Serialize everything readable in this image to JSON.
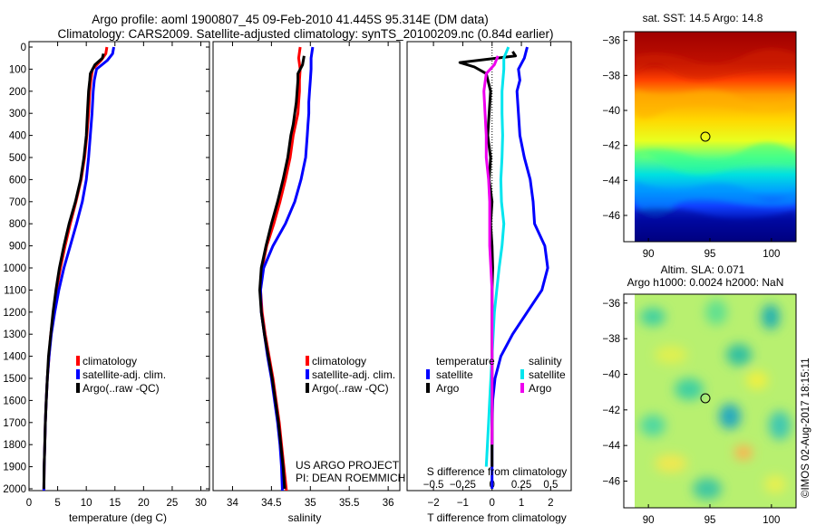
{
  "header": {
    "line1": "Argo profile: aoml 1900807_45 09-Feb-2010 41.445S 95.314E (DM data)",
    "line2": "Climatology: CARS2009. Satellite-adjusted climatology: synTS_20100209.nc (0.84d earlier)"
  },
  "colors": {
    "climatology": "#ff0000",
    "satellite": "#0000ff",
    "argo": "#000000",
    "sat_temp_diff": "#0000ff",
    "argo_temp_diff": "#000000",
    "sat_sal_diff": "#00e5ee",
    "argo_sal_diff": "#ee00ee"
  },
  "depth_axis": {
    "ticks": [
      0,
      100,
      200,
      300,
      400,
      500,
      600,
      700,
      800,
      900,
      1000,
      1100,
      1200,
      1300,
      1400,
      1500,
      1600,
      1700,
      1800,
      1900,
      2000
    ],
    "range": [
      0,
      2060
    ],
    "reversed": true
  },
  "chart_data": [
    {
      "id": "temperature",
      "type": "line",
      "xlabel": "temperature (deg C)",
      "xlim": [
        0,
        31.5
      ],
      "xticks": [
        0,
        5,
        10,
        15,
        20,
        25,
        30
      ],
      "legend": [
        "climatology",
        "satellite-adj. clim.",
        "Argo(..raw -QC)"
      ],
      "legend_position": "lower-center",
      "series": [
        {
          "name": "climatology",
          "colorKey": "climatology",
          "x": [
            13.6,
            13.4,
            12.6,
            11.1,
            10.8,
            10.6,
            10.4,
            10.1,
            9.7,
            9.1,
            8.2,
            7.2,
            6.3,
            5.5,
            4.8,
            4.3,
            3.8,
            3.5,
            3.2,
            3.0,
            2.85,
            2.75,
            2.65,
            2.6,
            2.55
          ],
          "y": [
            0,
            30,
            60,
            100,
            150,
            200,
            300,
            400,
            500,
            600,
            700,
            800,
            900,
            1000,
            1100,
            1200,
            1300,
            1400,
            1500,
            1600,
            1700,
            1800,
            1900,
            2000,
            2050
          ]
        },
        {
          "name": "satellite-adj. clim.",
          "colorKey": "satellite",
          "x": [
            14.8,
            14.6,
            13.7,
            11.8,
            11.4,
            11.2,
            11.0,
            10.7,
            10.4,
            10.0,
            9.3,
            8.3,
            7.2,
            6.1,
            5.2,
            4.5,
            3.9,
            3.5,
            3.2,
            3.0,
            2.85,
            2.75,
            2.65,
            2.6,
            2.55
          ],
          "y": [
            0,
            30,
            60,
            100,
            150,
            200,
            300,
            400,
            500,
            600,
            700,
            800,
            900,
            1000,
            1100,
            1200,
            1300,
            1400,
            1500,
            1600,
            1700,
            1800,
            1900,
            2000,
            2050
          ]
        },
        {
          "name": "Argo(..raw -QC)",
          "colorKey": "argo",
          "x": [
            13.0,
            12.8,
            11.5,
            10.7,
            10.6,
            10.4,
            10.2,
            10.0,
            9.6,
            9.0,
            8.1,
            7.0,
            6.1,
            5.3,
            4.7,
            4.2,
            3.8,
            3.4,
            3.2,
            3.0,
            2.85,
            2.75,
            2.65,
            2.6
          ],
          "y": [
            30,
            50,
            80,
            120,
            150,
            200,
            300,
            400,
            500,
            600,
            700,
            800,
            900,
            1000,
            1100,
            1200,
            1300,
            1400,
            1500,
            1600,
            1700,
            1800,
            1900,
            2000
          ]
        }
      ]
    },
    {
      "id": "salinity",
      "type": "line",
      "xlabel": "salinity",
      "xlim": [
        33.75,
        36.15
      ],
      "xticks": [
        34,
        34.5,
        35,
        35.5,
        36
      ],
      "legend": [
        "climatology",
        "satellite-adj. clim.",
        "Argo(..raw -QC)"
      ],
      "legend_position": "lower-center",
      "series": [
        {
          "name": "climatology",
          "colorKey": "climatology",
          "x": [
            34.87,
            34.85,
            34.87,
            34.86,
            34.86,
            34.85,
            34.84,
            34.81,
            34.78,
            34.74,
            34.68,
            34.61,
            34.53,
            34.44,
            34.38,
            34.36,
            34.38,
            34.42,
            34.47,
            34.52,
            34.56,
            34.6,
            34.63,
            34.66,
            34.69,
            34.7
          ],
          "y": [
            0,
            50,
            100,
            150,
            200,
            250,
            300,
            350,
            400,
            500,
            600,
            700,
            800,
            900,
            1000,
            1100,
            1200,
            1300,
            1400,
            1500,
            1600,
            1700,
            1800,
            1900,
            2000,
            2050
          ]
        },
        {
          "name": "satellite-adj. clim.",
          "colorKey": "satellite",
          "x": [
            35.03,
            35.01,
            35.01,
            35.0,
            34.99,
            34.98,
            34.98,
            34.97,
            34.96,
            34.94,
            34.88,
            34.8,
            34.68,
            34.52,
            34.4,
            34.36,
            34.37,
            34.41,
            34.45,
            34.5,
            34.54,
            34.58,
            34.61,
            34.63,
            34.64,
            34.64
          ],
          "y": [
            0,
            50,
            100,
            150,
            200,
            250,
            300,
            350,
            400,
            500,
            600,
            700,
            800,
            900,
            1000,
            1100,
            1200,
            1300,
            1400,
            1500,
            1600,
            1700,
            1800,
            1900,
            2000,
            2050
          ]
        },
        {
          "name": "Argo(..raw -QC)",
          "colorKey": "argo",
          "x": [
            34.92,
            34.9,
            34.84,
            34.84,
            34.83,
            34.82,
            34.8,
            34.78,
            34.75,
            34.71,
            34.65,
            34.58,
            34.5,
            34.43,
            34.37,
            34.35,
            34.37,
            34.41,
            34.46,
            34.51,
            34.55,
            34.59,
            34.62,
            34.65,
            34.67
          ],
          "y": [
            40,
            80,
            120,
            150,
            200,
            250,
            300,
            350,
            400,
            500,
            600,
            700,
            800,
            900,
            1000,
            1100,
            1200,
            1300,
            1400,
            1500,
            1600,
            1700,
            1800,
            1900,
            2000
          ]
        }
      ]
    },
    {
      "id": "differences",
      "type": "line",
      "xlabel": "T difference from climatology",
      "xlabel_top": "S difference from climatology",
      "xlim": [
        -2.9,
        2.7
      ],
      "xticks": [
        -2,
        -1,
        0,
        1,
        2
      ],
      "sticks": [
        "-0.5",
        "-0.25",
        "0",
        "0.25",
        "0.5"
      ],
      "legend": {
        "temperature_title": "temperature",
        "salinity_title": "salinity",
        "sat": "satellite",
        "argo": "Argo"
      },
      "legend_position": "lower-center",
      "series": [
        {
          "name": "temperature satellite",
          "colorKey": "sat_temp_diff",
          "x": [
            1.2,
            1.1,
            0.9,
            0.95,
            0.85,
            0.9,
            0.95,
            1.1,
            1.3,
            1.4,
            1.45,
            1.8,
            1.9,
            1.7,
            1.2,
            0.7,
            0.3,
            0.1,
            0.02,
            0.0,
            0.0,
            0.0,
            0.0
          ],
          "y": [
            0,
            50,
            100,
            150,
            200,
            300,
            400,
            500,
            600,
            700,
            800,
            900,
            1000,
            1100,
            1200,
            1300,
            1400,
            1500,
            1600,
            1700,
            1800,
            1900,
            2000
          ]
        },
        {
          "name": "temperature Argo",
          "colorKey": "argo_temp_diff",
          "x": [
            0.7,
            0.8,
            -1.1,
            -0.6,
            -0.2,
            -0.05,
            -0.1,
            -0.15,
            -0.05,
            -0.1,
            0.0,
            -0.05,
            0.0,
            0.02,
            0.0,
            0.0,
            0.0,
            0.0,
            0.0,
            0.0,
            0.0,
            0.0,
            0.0
          ],
          "y": [
            20,
            40,
            70,
            90,
            120,
            200,
            300,
            400,
            500,
            600,
            700,
            800,
            900,
            1000,
            1100,
            1200,
            1300,
            1400,
            1500,
            1600,
            1700,
            1800,
            1900
          ]
        },
        {
          "name": "salinity satellite",
          "colorKey": "sat_sal_diff",
          "x": [
            0.14,
            0.1,
            0.1,
            0.085,
            0.085,
            0.09,
            0.085,
            0.075,
            0.08,
            0.1,
            0.085,
            0.06,
            0.04,
            0.02,
            0.01,
            0.0,
            -0.01,
            -0.02,
            -0.03,
            -0.04,
            -0.05
          ],
          "y": [
            0,
            50,
            100,
            200,
            300,
            400,
            500,
            600,
            700,
            800,
            900,
            1000,
            1100,
            1200,
            1300,
            1400,
            1500,
            1600,
            1700,
            1800,
            1900
          ]
        },
        {
          "name": "salinity Argo",
          "colorKey": "argo_sal_diff",
          "x": [
            0.05,
            0.02,
            -0.05,
            -0.07,
            -0.06,
            -0.05,
            -0.05,
            -0.03,
            -0.02,
            -0.02,
            -0.02,
            -0.01,
            0.0,
            0.0,
            0.0,
            0.0,
            0.0,
            0.0,
            0.0,
            0.0
          ],
          "y": [
            40,
            80,
            120,
            200,
            300,
            400,
            500,
            600,
            700,
            800,
            900,
            1000,
            1100,
            1200,
            1300,
            1400,
            1500,
            1600,
            1700,
            1800
          ]
        }
      ]
    },
    {
      "id": "sst_map",
      "type": "heatmap",
      "title": "sat. SST: 14.5 Argo: 14.8",
      "xlim": [
        88,
        102
      ],
      "ylim": [
        -47.5,
        -35.5
      ],
      "xticks": [
        90,
        95,
        100
      ],
      "yticks": [
        -36,
        -38,
        -40,
        -42,
        -44,
        -46
      ],
      "marker": {
        "lon": 95.314,
        "lat": -41.445
      },
      "colormap": [
        "#00007f",
        "#0000c8",
        "#0050ff",
        "#00b0ff",
        "#30ffd0",
        "#90ff60",
        "#ffe800",
        "#ff9000",
        "#ff3000",
        "#b00000"
      ]
    },
    {
      "id": "sla_map",
      "type": "heatmap",
      "title_line1": "Altim. SLA: 0.071",
      "title_line2": "Argo h1000: 0.0024 h2000: NaN",
      "xlim": [
        88,
        102
      ],
      "ylim": [
        -47.5,
        -35.5
      ],
      "xticks": [
        90,
        95,
        100
      ],
      "yticks": [
        -36,
        -38,
        -40,
        -42,
        -44,
        -46
      ],
      "marker": {
        "lon": 95.314,
        "lat": -41.445
      }
    }
  ],
  "annotations": {
    "project": "US ARGO PROJECT",
    "pi": "PI: DEAN ROEMMICH",
    "credit": "©IMOS 02-Aug-2017 18:15:11"
  }
}
